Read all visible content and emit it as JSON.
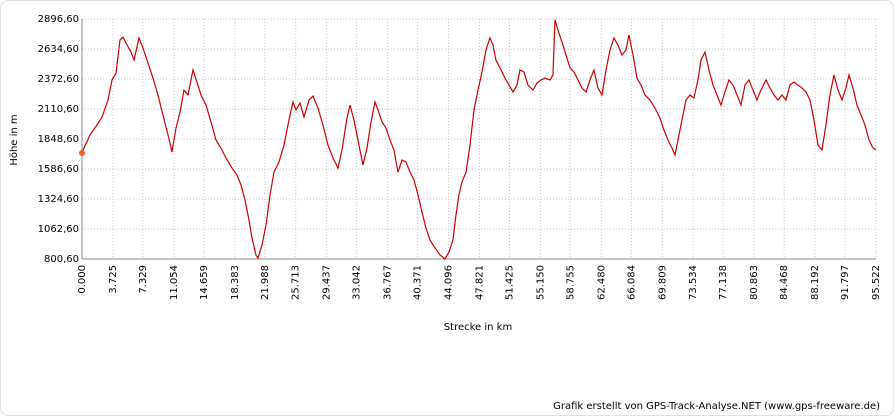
{
  "chart_data": {
    "type": "line",
    "y_label": "Höhe  in  m",
    "x_label": "Strecke  in  km",
    "credit": "Grafik erstellt von GPS-Track-Analyse.NET (www.gps-freeware.de)",
    "xlim": [
      0,
      95.522
    ],
    "ylim": [
      800.6,
      2896.6
    ],
    "grid": true,
    "color": "#cc0000",
    "xticks": [
      {
        "value": 0,
        "label": "0.000"
      },
      3.725,
      7.329,
      11.054,
      14.659,
      18.383,
      21.988,
      25.713,
      29.437,
      33.042,
      36.767,
      40.371,
      44.096,
      47.821,
      51.425,
      {
        "value": 55.15,
        "label": "55.150"
      },
      58.755,
      {
        "value": 62.48,
        "label": "62.480"
      },
      66.084,
      69.809,
      73.534,
      77.138,
      80.863,
      84.468,
      88.192,
      91.797,
      95.522
    ],
    "yticks": [
      {
        "value": 800.6,
        "label": "800,60"
      },
      {
        "value": 1062.6,
        "label": "1062,60"
      },
      {
        "value": 1324.6,
        "label": "1324,60"
      },
      {
        "value": 1586.6,
        "label": "1586,60"
      },
      {
        "value": 1848.6,
        "label": "1848,60"
      },
      {
        "value": 2110.6,
        "label": "2110,60"
      },
      {
        "value": 2372.6,
        "label": "2372,60"
      },
      {
        "value": 2634.6,
        "label": "2634,60"
      },
      {
        "value": 2896.6,
        "label": "2896,60"
      }
    ],
    "x": [
      0,
      0.24,
      0.96,
      1.8,
      2.41,
      3.13,
      3.61,
      4.09,
      4.57,
      4.93,
      5.29,
      5.89,
      6.26,
      6.86,
      7.34,
      7.94,
      8.54,
      9.14,
      9.74,
      10.35,
      10.83,
      11.31,
      11.79,
      12.27,
      12.75,
      13.35,
      13.83,
      14.32,
      14.92,
      15.52,
      16.12,
      16.72,
      17.32,
      18.05,
      18.65,
      19.13,
      19.61,
      20.09,
      20.45,
      20.93,
      21.17,
      21.65,
      22.14,
      22.62,
      23.1,
      23.7,
      24.3,
      24.9,
      25.38,
      25.74,
      26.23,
      26.71,
      27.31,
      27.79,
      28.39,
      28.99,
      29.59,
      30.2,
      30.8,
      31.28,
      31.88,
      32.24,
      32.72,
      33.2,
      33.8,
      34.29,
      34.77,
      35.25,
      35.61,
      36.09,
      36.57,
      37.05,
      37.53,
      38.01,
      38.5,
      38.98,
      39.46,
      39.94,
      40.42,
      40.9,
      41.38,
      41.86,
      42.47,
      43.07,
      43.67,
      44.15,
      44.63,
      44.99,
      45.35,
      45.71,
      46.2,
      46.68,
      47.16,
      47.64,
      48.12,
      48.6,
      49.08,
      49.44,
      49.8,
      50.29,
      50.89,
      51.37,
      51.85,
      52.33,
      52.69,
      53.17,
      53.65,
      54.26,
      54.74,
      55.22,
      55.7,
      56.3,
      56.66,
      56.9,
      57.26,
      57.74,
      58.23,
      58.71,
      59.19,
      59.67,
      60.15,
      60.63,
      61.11,
      61.59,
      62.07,
      62.56,
      63.04,
      63.52,
      64.0,
      64.48,
      64.96,
      65.44,
      65.8,
      66.29,
      66.77,
      67.25,
      67.73,
      68.33,
      68.93,
      69.53,
      70.01,
      70.5,
      70.98,
      71.34,
      71.7,
      72.18,
      72.66,
      73.14,
      73.62,
      74.1,
      74.47,
      74.95,
      75.43,
      75.91,
      76.39,
      76.87,
      77.35,
      77.83,
      78.32,
      78.8,
      79.28,
      79.76,
      80.24,
      80.72,
      81.2,
      81.68,
      82.29,
      82.77,
      83.25,
      83.73,
      84.21,
      84.69,
      85.17,
      85.65,
      86.13,
      86.62,
      87.1,
      87.58,
      88.06,
      88.54,
      89.02,
      89.5,
      89.98,
      90.47,
      90.95,
      91.43,
      91.91,
      92.27,
      92.75,
      93.23,
      93.72,
      94.2,
      94.68,
      95.16,
      95.52
    ],
    "values": [
      1726,
      1770,
      1884,
      1971,
      2041,
      2189,
      2364,
      2425,
      2713,
      2739,
      2687,
      2608,
      2538,
      2731,
      2643,
      2512,
      2381,
      2233,
      2058,
      1884,
      1735,
      1945,
      2084,
      2276,
      2233,
      2451,
      2346,
      2233,
      2145,
      1997,
      1840,
      1770,
      1683,
      1595,
      1534,
      1447,
      1316,
      1141,
      984,
      836,
      809,
      923,
      1098,
      1360,
      1560,
      1648,
      1796,
      2015,
      2172,
      2102,
      2163,
      2041,
      2189,
      2224,
      2119,
      1971,
      1796,
      1683,
      1595,
      1753,
      2032,
      2145,
      2015,
      1840,
      1622,
      1770,
      1997,
      2172,
      2102,
      1997,
      1945,
      1840,
      1753,
      1560,
      1665,
      1648,
      1560,
      1491,
      1360,
      1211,
      1071,
      967,
      897,
      836,
      801,
      862,
      967,
      1185,
      1360,
      1473,
      1560,
      1796,
      2102,
      2276,
      2434,
      2626,
      2731,
      2669,
      2538,
      2469,
      2381,
      2320,
      2259,
      2320,
      2451,
      2434,
      2320,
      2276,
      2338,
      2364,
      2381,
      2364,
      2407,
      2890,
      2800,
      2696,
      2582,
      2469,
      2434,
      2364,
      2294,
      2259,
      2364,
      2451,
      2294,
      2233,
      2451,
      2626,
      2731,
      2669,
      2582,
      2626,
      2757,
      2582,
      2381,
      2320,
      2233,
      2189,
      2119,
      2032,
      1927,
      1840,
      1770,
      1709,
      1840,
      2015,
      2189,
      2233,
      2207,
      2364,
      2538,
      2608,
      2451,
      2320,
      2233,
      2145,
      2259,
      2364,
      2320,
      2233,
      2145,
      2320,
      2364,
      2276,
      2189,
      2276,
      2364,
      2294,
      2233,
      2189,
      2233,
      2189,
      2320,
      2346,
      2320,
      2294,
      2259,
      2189,
      2015,
      1796,
      1753,
      1971,
      2233,
      2407,
      2276,
      2189,
      2294,
      2407,
      2294,
      2145,
      2058,
      1971,
      1840,
      1770,
      1753
    ]
  }
}
